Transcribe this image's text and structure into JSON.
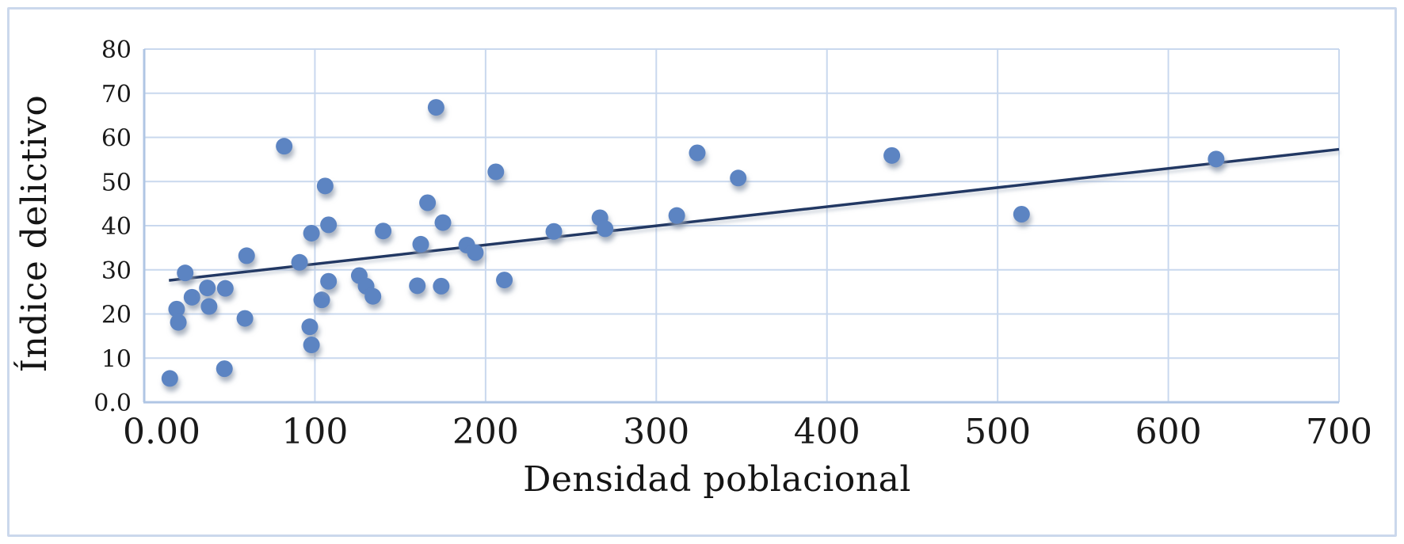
{
  "chart_data": {
    "type": "scatter",
    "title": "",
    "xlabel": "Densidad poblacional",
    "ylabel": "Índice delictivo",
    "xlim": [
      0,
      700
    ],
    "ylim": [
      0,
      80
    ],
    "grid": true,
    "legend": "none",
    "x_ticks": {
      "values": [
        0,
        100,
        200,
        300,
        400,
        500,
        600,
        700
      ],
      "labels": [
        "0.00",
        "100",
        "200",
        "300",
        "400",
        "500",
        "600",
        "700"
      ]
    },
    "y_ticks": {
      "values": [
        0,
        10,
        20,
        30,
        40,
        50,
        60,
        70,
        80
      ],
      "labels": [
        "0.0",
        "10",
        "20",
        "30",
        "40",
        "50",
        "60",
        "70",
        "80"
      ]
    },
    "points": [
      [
        15,
        5.4
      ],
      [
        19,
        21.1
      ],
      [
        20,
        18.1
      ],
      [
        24,
        29.3
      ],
      [
        28,
        23.8
      ],
      [
        37,
        25.9
      ],
      [
        38,
        21.7
      ],
      [
        47,
        7.6
      ],
      [
        47.5,
        25.8
      ],
      [
        59,
        19.0
      ],
      [
        60,
        33.2
      ],
      [
        82,
        58.0
      ],
      [
        91,
        31.7
      ],
      [
        97,
        17.1
      ],
      [
        98,
        13.0
      ],
      [
        98,
        38.3
      ],
      [
        104,
        23.2
      ],
      [
        106,
        49.0
      ],
      [
        108,
        40.2
      ],
      [
        108,
        27.4
      ],
      [
        126,
        28.7
      ],
      [
        130,
        26.3
      ],
      [
        134,
        24.0
      ],
      [
        140,
        38.8
      ],
      [
        160,
        26.4
      ],
      [
        162,
        35.8
      ],
      [
        166,
        45.2
      ],
      [
        171,
        66.8
      ],
      [
        174,
        26.3
      ],
      [
        175,
        40.7
      ],
      [
        189,
        35.6
      ],
      [
        194,
        33.9
      ],
      [
        206,
        52.2
      ],
      [
        211,
        27.7
      ],
      [
        240,
        38.7
      ],
      [
        267,
        41.8
      ],
      [
        270,
        39.3
      ],
      [
        312,
        42.3
      ],
      [
        324,
        56.5
      ],
      [
        348,
        50.8
      ],
      [
        438,
        55.9
      ],
      [
        514,
        42.6
      ],
      [
        628,
        55.1
      ]
    ],
    "trendline": {
      "x1": 14.5,
      "y1": 27.6,
      "x2": 700,
      "y2": 57.3
    },
    "colors": {
      "marker": "#5b84c2",
      "trend": "#203864",
      "grid": "#c9d8ee",
      "axis": "#b0c6e4",
      "frame": "#cbd8ec",
      "text": "#1a1a1a"
    }
  }
}
